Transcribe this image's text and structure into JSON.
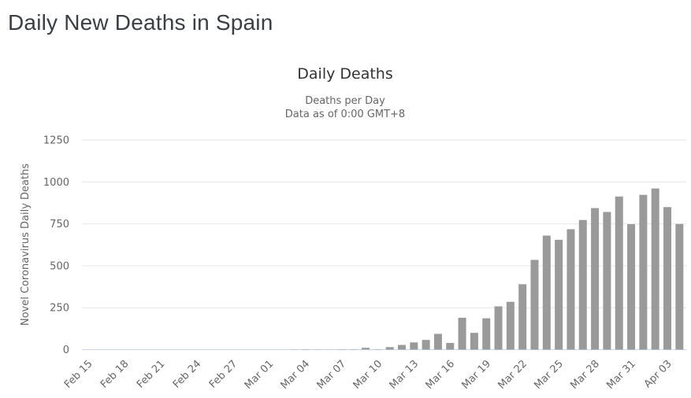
{
  "page": {
    "title": "Daily New Deaths in Spain"
  },
  "colors": {
    "bar": "#9a9a9a",
    "grid_line": "#e6e6e6",
    "axis_line": "#ccd6eb",
    "label_text": "#666666",
    "chart_title_text": "#333333",
    "page_title_text": "#3a3f44"
  },
  "chart_data": {
    "type": "bar",
    "title": "Daily Deaths",
    "subtitle_line1": "Deaths per Day",
    "subtitle_line2": "Data as of 0:00 GMT+8",
    "ylabel": "Novel Coronavirus Daily Deaths",
    "xlabel": "",
    "ylim": [
      0,
      1250
    ],
    "yticks": [
      0,
      250,
      500,
      750,
      1000,
      1250
    ],
    "grid": "on",
    "legend": "none",
    "x_tick_every": 3,
    "x_tick_labels": [
      "Feb 15",
      "Feb 18",
      "Feb 21",
      "Feb 24",
      "Feb 27",
      "Mar 01",
      "Mar 04",
      "Mar 07",
      "Mar 10",
      "Mar 13",
      "Mar 16",
      "Mar 19",
      "Mar 22",
      "Mar 25",
      "Mar 28",
      "Mar 31",
      "Apr 03"
    ],
    "categories": [
      "Feb 15",
      "Feb 16",
      "Feb 17",
      "Feb 18",
      "Feb 19",
      "Feb 20",
      "Feb 21",
      "Feb 22",
      "Feb 23",
      "Feb 24",
      "Feb 25",
      "Feb 26",
      "Feb 27",
      "Feb 28",
      "Feb 29",
      "Mar 01",
      "Mar 02",
      "Mar 03",
      "Mar 04",
      "Mar 05",
      "Mar 06",
      "Mar 07",
      "Mar 08",
      "Mar 09",
      "Mar 10",
      "Mar 11",
      "Mar 12",
      "Mar 13",
      "Mar 14",
      "Mar 15",
      "Mar 16",
      "Mar 17",
      "Mar 18",
      "Mar 19",
      "Mar 20",
      "Mar 21",
      "Mar 22",
      "Mar 23",
      "Mar 24",
      "Mar 25",
      "Mar 26",
      "Mar 27",
      "Mar 28",
      "Mar 29",
      "Mar 30",
      "Mar 31",
      "Apr 01",
      "Apr 02",
      "Apr 03",
      "Apr 04"
    ],
    "values": [
      0,
      0,
      0,
      0,
      0,
      0,
      0,
      0,
      0,
      0,
      0,
      0,
      0,
      0,
      0,
      0,
      0,
      1,
      2,
      1,
      1,
      2,
      2,
      11,
      2,
      15,
      28,
      43,
      58,
      94,
      40,
      190,
      100,
      187,
      258,
      285,
      390,
      535,
      680,
      655,
      718,
      773,
      844,
      821,
      913,
      748,
      923,
      961,
      850,
      749
    ]
  }
}
